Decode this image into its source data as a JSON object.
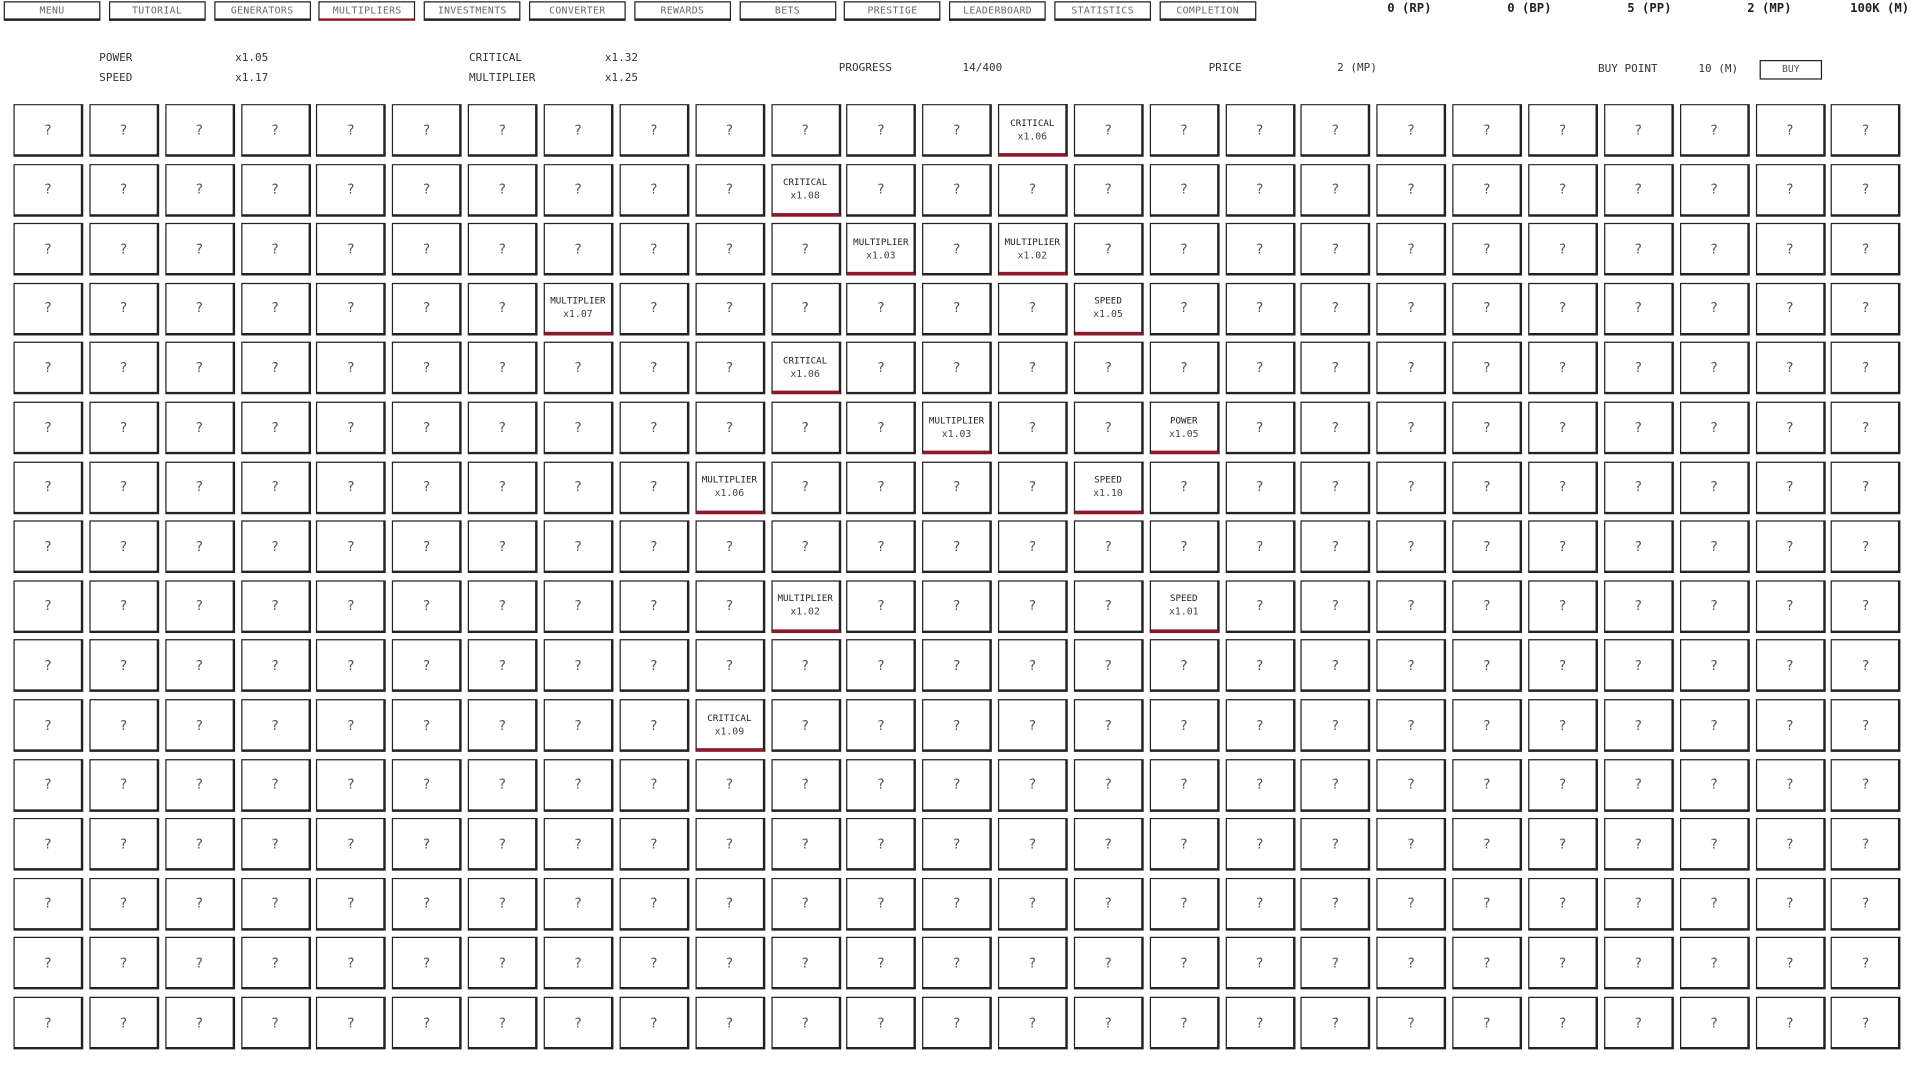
{
  "nav": {
    "tabs": [
      "MENU",
      "TUTORIAL",
      "GENERATORS",
      "MULTIPLIERS",
      "INVESTMENTS",
      "CONVERTER",
      "REWARDS",
      "BETS",
      "PRESTIGE",
      "LEADERBOARD",
      "STATISTICS",
      "COMPLETION"
    ],
    "active_tab": "MULTIPLIERS"
  },
  "currencies": [
    "0 (RP)",
    "0 (BP)",
    "5 (PP)",
    "2 (MP)",
    "100K (M)"
  ],
  "stats": {
    "power_label": "POWER",
    "power_value": "x1.05",
    "speed_label": "SPEED",
    "speed_value": "x1.17",
    "critical_label": "CRITICAL",
    "critical_value": "x1.32",
    "multiplier_label": "MULTIPLIER",
    "multiplier_value": "x1.25",
    "progress_label": "PROGRESS",
    "progress_value": "14/400",
    "price_label": "PRICE",
    "price_value": "2 (MP)",
    "buy_point_label": "BUY POINT",
    "buy_point_value": "10 (M)",
    "buy_button": "BUY"
  },
  "colors": {
    "accent": "#8b1a2b",
    "border": "#222222"
  },
  "grid": {
    "rows": 16,
    "cols": 25,
    "hidden_label": "?",
    "revealed": [
      {
        "row": 0,
        "col": 13,
        "type": "CRITICAL",
        "value": "x1.06"
      },
      {
        "row": 1,
        "col": 10,
        "type": "CRITICAL",
        "value": "x1.08"
      },
      {
        "row": 2,
        "col": 11,
        "type": "MULTIPLIER",
        "value": "x1.03"
      },
      {
        "row": 2,
        "col": 13,
        "type": "MULTIPLIER",
        "value": "x1.02"
      },
      {
        "row": 3,
        "col": 7,
        "type": "MULTIPLIER",
        "value": "x1.07"
      },
      {
        "row": 3,
        "col": 14,
        "type": "SPEED",
        "value": "x1.05"
      },
      {
        "row": 4,
        "col": 10,
        "type": "CRITICAL",
        "value": "x1.06"
      },
      {
        "row": 5,
        "col": 12,
        "type": "MULTIPLIER",
        "value": "x1.03"
      },
      {
        "row": 5,
        "col": 15,
        "type": "POWER",
        "value": "x1.05"
      },
      {
        "row": 6,
        "col": 9,
        "type": "MULTIPLIER",
        "value": "x1.06"
      },
      {
        "row": 6,
        "col": 14,
        "type": "SPEED",
        "value": "x1.10"
      },
      {
        "row": 8,
        "col": 10,
        "type": "MULTIPLIER",
        "value": "x1.02"
      },
      {
        "row": 8,
        "col": 15,
        "type": "SPEED",
        "value": "x1.01"
      },
      {
        "row": 10,
        "col": 9,
        "type": "CRITICAL",
        "value": "x1.09"
      }
    ]
  }
}
